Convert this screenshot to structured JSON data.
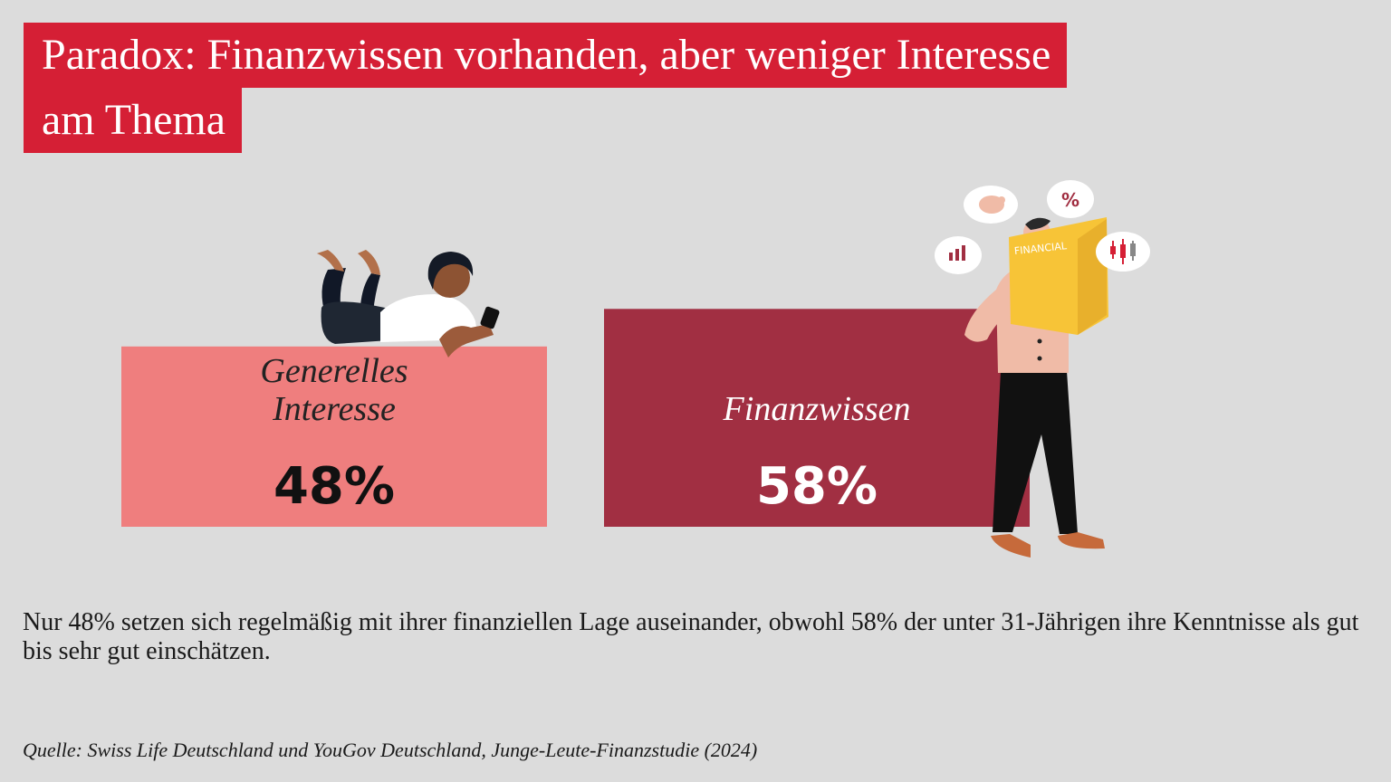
{
  "title": {
    "line1": "Paradox: Finanzwissen vorhanden, aber weniger Interesse",
    "line2": "am Thema"
  },
  "chart_data": {
    "type": "bar",
    "title": "Paradox: Finanzwissen vorhanden, aber weniger Interesse am Thema",
    "categories": [
      "Generelles Interesse",
      "Finanzwissen"
    ],
    "category_lines": [
      [
        "Generelles",
        "Interesse"
      ],
      [
        "Finanzwissen"
      ]
    ],
    "values": [
      48,
      58
    ],
    "value_labels": [
      "48%",
      "58%"
    ],
    "unit": "%",
    "ylim": [
      0,
      100
    ],
    "grid": false,
    "xlabel": "",
    "ylabel": ""
  },
  "illustration": {
    "book_text": "FINANCIAL",
    "bubble_percent": "%"
  },
  "caption": "Nur 48% setzen sich regelmäßig mit ihrer finanziellen Lage auseinander, obwohl 58% der unter 31-Jährigen ihre Kenntnisse als gut bis sehr gut einschätzen.",
  "source": "Quelle: Swiss Life Deutschland und YouGov Deutschland, Junge-Leute-Finanzstudie (2024)",
  "colors": {
    "title_bg": "#d51f35",
    "bar_1": "#ef7e7e",
    "bar_2": "#a12f42",
    "value_1": "#111111",
    "value_2": "#ffffff",
    "background": "#dcdcdc",
    "book": "#f7c437"
  }
}
